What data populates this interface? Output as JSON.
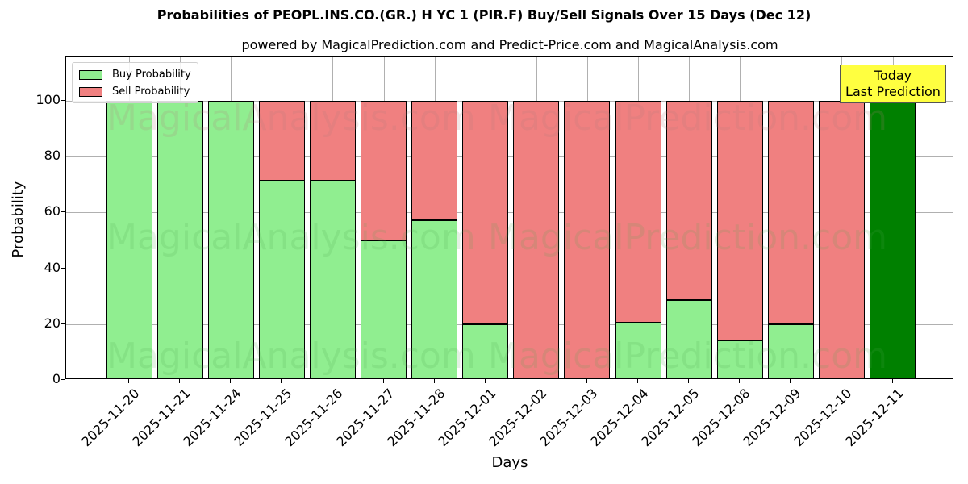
{
  "title": "Probabilities of PEOPL.INS.CO.(GR.) H YC 1 (PIR.F) Buy/Sell Signals Over 15 Days (Dec 12)",
  "subtitle": "powered by MagicalPrediction.com and Predict-Price.com and MagicalAnalysis.com",
  "legend": {
    "buy_label": "Buy Probability",
    "sell_label": "Sell Probability"
  },
  "annotation": {
    "line1": "Today",
    "line2": "Last Prediction"
  },
  "watermarks": [
    "MagicalAnalysis.com",
    "MagicalPrediction.com"
  ],
  "colors": {
    "buy": "#90ee90",
    "sell": "#f08080",
    "today": "#008000",
    "annotation_bg": "#ffff40",
    "grid": "#b0b0b0",
    "refline": "#808080"
  },
  "axes": {
    "xlabel": "Days",
    "ylabel": "Probability",
    "yticks": [
      "0",
      "20",
      "40",
      "60",
      "80",
      "100"
    ]
  },
  "chart_data": {
    "type": "bar",
    "stacked": true,
    "title": "Probabilities of PEOPL.INS.CO.(GR.) H YC 1 (PIR.F) Buy/Sell Signals Over 15 Days (Dec 12)",
    "subtitle": "powered by MagicalPrediction.com and Predict-Price.com and MagicalAnalysis.com",
    "xlabel": "Days",
    "ylabel": "Probability",
    "ylim": [
      0,
      115
    ],
    "yticks": [
      0,
      20,
      40,
      60,
      80,
      100
    ],
    "grid": true,
    "legend_position": "upper left",
    "reference_line": {
      "y": 110,
      "style": "dashed",
      "color": "#808080"
    },
    "categories": [
      "2025-11-20",
      "2025-11-21",
      "2025-11-24",
      "2025-11-25",
      "2025-11-26",
      "2025-11-27",
      "2025-11-28",
      "2025-12-01",
      "2025-12-02",
      "2025-12-03",
      "2025-12-04",
      "2025-12-05",
      "2025-12-08",
      "2025-12-09",
      "2025-12-10",
      "2025-12-11"
    ],
    "series": [
      {
        "name": "Buy Probability",
        "color": "#90ee90",
        "values": [
          100,
          100,
          100,
          71.4,
          71.4,
          50,
          57.1,
          20,
          0,
          0,
          20.4,
          28.6,
          14.3,
          20,
          0,
          100
        ]
      },
      {
        "name": "Sell Probability",
        "color": "#f08080",
        "values": [
          0,
          0,
          0,
          28.6,
          28.6,
          50,
          42.9,
          80,
          100,
          100,
          79.6,
          71.4,
          85.7,
          80,
          100,
          0
        ]
      }
    ],
    "annotations": [
      {
        "text": "Today\nLast Prediction",
        "x": "2025-12-11",
        "note": "last bar drawn in dark green (#008000)"
      }
    ]
  }
}
